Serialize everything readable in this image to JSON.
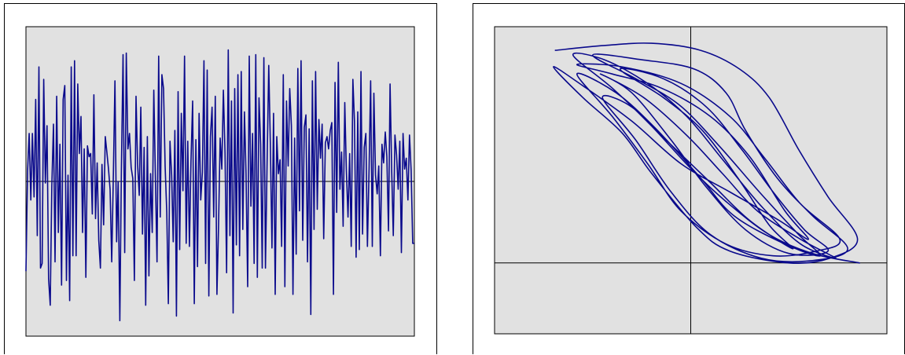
{
  "theme": {
    "plot_background": "#e1e1e1",
    "line_color": "#0a0a8c",
    "axis_color": "#000000",
    "page_background": "#ffffff"
  },
  "chart_data": [
    {
      "type": "line",
      "title": "",
      "xlabel": "",
      "ylabel": "",
      "grid": false,
      "legend": "none",
      "xlim": [
        0,
        240
      ],
      "ylim": [
        -1.0,
        1.0
      ],
      "baseline": 0,
      "values": [
        -0.58,
        0.07,
        0.31,
        -0.12,
        0.31,
        -0.1,
        0.53,
        -0.35,
        0.74,
        -0.56,
        -0.53,
        0.66,
        -0.01,
        0.36,
        -0.63,
        -0.8,
        -0.03,
        0.37,
        -0.52,
        0.55,
        -0.33,
        0.24,
        -0.67,
        0.53,
        0.62,
        -0.64,
        0.04,
        -0.77,
        0.74,
        -0.48,
        0.78,
        -0.48,
        0.63,
        0.18,
        0.42,
        -0.33,
        0.21,
        -0.62,
        0.23,
        0.16,
        0.18,
        -0.21,
        0.56,
        -0.24,
        0.12,
        -0.38,
        -0.56,
        0.11,
        -0.28,
        0.29,
        0.19,
        0.08,
        -0.05,
        -0.52,
        0.05,
        0.65,
        -0.39,
        0.0,
        -0.9,
        0.08,
        0.82,
        -0.46,
        0.83,
        0.21,
        0.31,
        0.09,
        0.02,
        -0.64,
        0.55,
        0.11,
        -0.09,
        0.48,
        -0.34,
        0.22,
        -0.8,
        0.29,
        -0.61,
        0.05,
        -0.33,
        0.59,
        0.01,
        -0.52,
        0.81,
        -0.23,
        0.69,
        0.6,
        0.1,
        -0.2,
        -0.79,
        0.26,
        0.04,
        -0.39,
        0.33,
        -0.87,
        0.58,
        -0.44,
        0.44,
        -0.06,
        0.81,
        -0.4,
        0.26,
        -0.42,
        0.13,
        0.52,
        -0.79,
        0.27,
        -0.55,
        0.44,
        -0.12,
        0.06,
        0.78,
        -0.53,
        0.72,
        -0.74,
        0.29,
        0.48,
        -0.23,
        0.55,
        -0.73,
        -0.3,
        0.28,
        0.08,
        0.59,
        0.18,
        -0.59,
        0.85,
        -0.35,
        0.52,
        -0.85,
        0.6,
        -0.41,
        0.69,
        -0.48,
        0.71,
        -0.31,
        0.45,
        0.05,
        -0.68,
        0.81,
        -0.16,
        0.31,
        -0.53,
        0.82,
        -0.62,
        0.54,
        0.24,
        -0.56,
        0.8,
        -0.56,
        0.12,
        0.75,
        0.25,
        -0.43,
        0.44,
        -0.73,
        0.29,
        0.05,
        0.14,
        -0.42,
        0.69,
        -0.68,
        0.52,
        0.1,
        0.6,
        0.36,
        -0.73,
        0.28,
        -0.47,
        0.73,
        -0.19,
        0.78,
        -0.38,
        0.35,
        0.43,
        -0.52,
        0.34,
        -0.86,
        0.65,
        -0.31,
        0.71,
        -0.18,
        0.4,
        0.15,
        0.37,
        -0.37,
        0.25,
        0.29,
        0.21,
        0.33,
        0.38,
        -0.73,
        0.64,
        -0.2,
        0.77,
        -0.05,
        0.19,
        -0.29,
        0.51,
        0.07,
        -0.23,
        0.18,
        -0.42,
        0.66,
        0.39,
        -0.49,
        0.45,
        -0.44,
        0.71,
        -0.34,
        0.22,
        0.31,
        -0.42,
        0.08,
        0.65,
        -0.42,
        0.57,
        0.04,
        -0.08,
        0.1,
        -0.48,
        0.24,
        0.12,
        0.32,
        0.16,
        -0.32,
        0.63,
        0.06,
        -0.35,
        0.3,
        0.17,
        -0.05,
        0.26,
        -0.46,
        0.31,
        0.08,
        0.15,
        -0.12,
        0.3,
        0.07,
        -0.4,
        -0.4
      ]
    },
    {
      "type": "line",
      "subtype": "phase-portrait",
      "title": "",
      "xlabel": "",
      "ylabel": "",
      "grid": false,
      "legend": "none",
      "xlim": [
        -1.0,
        1.0
      ],
      "ylim": [
        -0.3,
        1.0
      ],
      "axis_lines": {
        "x": 0,
        "y": 0
      },
      "points": [
        [
          -0.69,
          0.9
        ],
        [
          -0.45,
          0.92
        ],
        [
          -0.2,
          0.93
        ],
        [
          0.05,
          0.9
        ],
        [
          0.25,
          0.82
        ],
        [
          0.4,
          0.7
        ],
        [
          0.55,
          0.48
        ],
        [
          0.7,
          0.28
        ],
        [
          0.85,
          0.1
        ],
        [
          0.71,
          0.02
        ],
        [
          0.5,
          0.0
        ],
        [
          0.2,
          0.05
        ],
        [
          0.03,
          0.15
        ],
        [
          -0.2,
          0.38
        ],
        [
          -0.35,
          0.55
        ],
        [
          -0.55,
          0.7
        ],
        [
          -0.7,
          0.83
        ],
        [
          -0.55,
          0.75
        ],
        [
          -0.3,
          0.6
        ],
        [
          -0.05,
          0.42
        ],
        [
          0.2,
          0.3
        ],
        [
          0.45,
          0.18
        ],
        [
          0.6,
          0.1
        ],
        [
          0.48,
          0.22
        ],
        [
          0.3,
          0.45
        ],
        [
          0.1,
          0.62
        ],
        [
          -0.15,
          0.74
        ],
        [
          -0.4,
          0.8
        ],
        [
          -0.58,
          0.84
        ],
        [
          -0.35,
          0.83
        ],
        [
          -0.05,
          0.76
        ],
        [
          0.2,
          0.62
        ],
        [
          0.38,
          0.44
        ],
        [
          0.56,
          0.25
        ],
        [
          0.76,
          0.1
        ],
        [
          0.64,
          0.05
        ],
        [
          0.42,
          0.03
        ],
        [
          0.18,
          0.08
        ],
        [
          -0.05,
          0.22
        ],
        [
          -0.22,
          0.42
        ],
        [
          -0.4,
          0.62
        ],
        [
          -0.58,
          0.8
        ],
        [
          -0.38,
          0.72
        ],
        [
          -0.18,
          0.57
        ],
        [
          0.05,
          0.36
        ],
        [
          0.22,
          0.2
        ],
        [
          0.48,
          0.08
        ],
        [
          0.66,
          0.03
        ],
        [
          0.55,
          0.12
        ],
        [
          0.35,
          0.3
        ],
        [
          0.14,
          0.5
        ],
        [
          -0.06,
          0.67
        ],
        [
          -0.28,
          0.78
        ],
        [
          -0.5,
          0.88
        ],
        [
          -0.25,
          0.86
        ],
        [
          0.02,
          0.82
        ],
        [
          0.18,
          0.72
        ],
        [
          0.28,
          0.56
        ],
        [
          0.44,
          0.36
        ],
        [
          0.62,
          0.2
        ],
        [
          0.8,
          0.06
        ],
        [
          0.62,
          0.01
        ],
        [
          0.36,
          0.02
        ],
        [
          0.1,
          0.12
        ],
        [
          -0.1,
          0.3
        ],
        [
          -0.28,
          0.52
        ],
        [
          -0.45,
          0.7
        ],
        [
          -0.3,
          0.66
        ],
        [
          -0.1,
          0.5
        ],
        [
          0.1,
          0.34
        ],
        [
          0.3,
          0.18
        ],
        [
          0.52,
          0.06
        ],
        [
          0.4,
          0.16
        ],
        [
          0.24,
          0.36
        ],
        [
          0.06,
          0.56
        ],
        [
          -0.14,
          0.7
        ],
        [
          -0.36,
          0.82
        ],
        [
          -0.14,
          0.78
        ],
        [
          0.08,
          0.66
        ],
        [
          0.26,
          0.48
        ],
        [
          0.42,
          0.3
        ],
        [
          0.58,
          0.14
        ],
        [
          0.7,
          0.05
        ],
        [
          0.5,
          0.04
        ],
        [
          0.28,
          0.14
        ],
        [
          0.08,
          0.32
        ],
        [
          -0.1,
          0.52
        ],
        [
          -0.3,
          0.72
        ],
        [
          -0.46,
          0.8
        ],
        [
          -0.24,
          0.7
        ],
        [
          -0.02,
          0.54
        ],
        [
          0.16,
          0.38
        ],
        [
          0.34,
          0.22
        ],
        [
          0.56,
          0.1
        ],
        [
          0.74,
          0.02
        ],
        [
          0.56,
          0.08
        ],
        [
          0.36,
          0.24
        ],
        [
          0.16,
          0.44
        ],
        [
          -0.02,
          0.62
        ],
        [
          -0.22,
          0.76
        ],
        [
          -0.44,
          0.86
        ],
        [
          -0.6,
          0.88
        ],
        [
          -0.4,
          0.74
        ],
        [
          -0.2,
          0.58
        ],
        [
          0.0,
          0.4
        ],
        [
          0.18,
          0.26
        ],
        [
          0.4,
          0.12
        ],
        [
          0.62,
          0.04
        ],
        [
          0.86,
          0.0
        ]
      ]
    }
  ]
}
